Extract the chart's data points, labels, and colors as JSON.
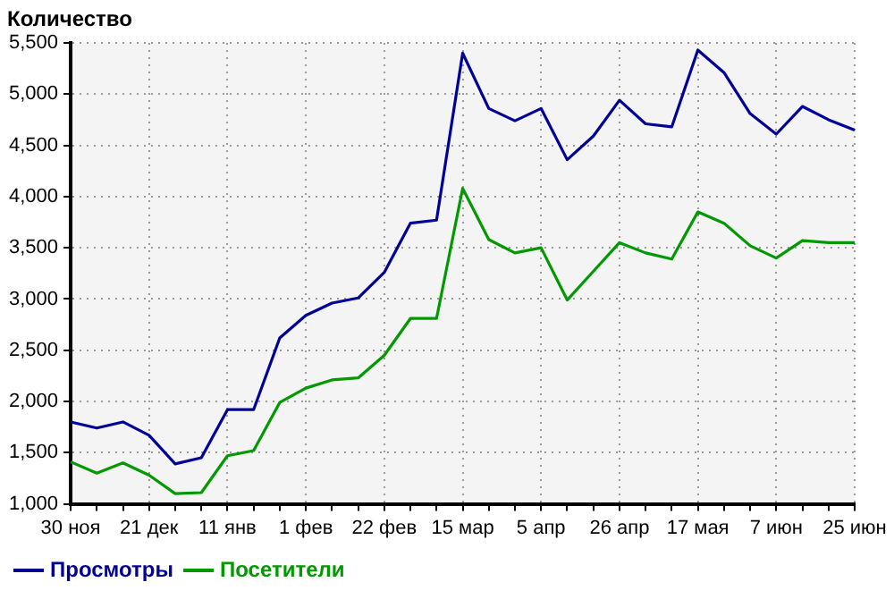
{
  "chart_data": {
    "type": "line",
    "ylabel": "Количество",
    "categories": [
      "30 ноя",
      null,
      null,
      "21 дек",
      null,
      null,
      "11 янв",
      null,
      null,
      "1 фев",
      null,
      null,
      "22 фев",
      null,
      null,
      "15 мар",
      null,
      null,
      "5 апр",
      null,
      null,
      "26 апр",
      null,
      null,
      "17 мая",
      null,
      null,
      "7 июн",
      null,
      null,
      "25 июн"
    ],
    "series": [
      {
        "name": "Просмотры",
        "color": "#000099",
        "values": [
          1800,
          1740,
          1800,
          1670,
          1390,
          1450,
          1920,
          1920,
          2620,
          2840,
          2960,
          3010,
          3260,
          3740,
          3770,
          5400,
          4860,
          4740,
          4860,
          4360,
          4590,
          4940,
          4710,
          4680,
          5430,
          5210,
          4810,
          4610,
          4880,
          4750,
          4650
        ]
      },
      {
        "name": "Посетители",
        "color": "#009900",
        "values": [
          1410,
          1300,
          1400,
          1280,
          1100,
          1110,
          1470,
          1520,
          1990,
          2130,
          2210,
          2230,
          2450,
          2810,
          2810,
          4080,
          3580,
          3450,
          3500,
          2990,
          3270,
          3550,
          3450,
          3390,
          3850,
          3740,
          3520,
          3400,
          3570,
          3550,
          3550
        ]
      }
    ],
    "ylim": [
      1000,
      5500
    ],
    "yticks": [
      {
        "value": 1000,
        "label": "1,000"
      },
      {
        "value": 1500,
        "label": "1,500"
      },
      {
        "value": 2000,
        "label": "2,000"
      },
      {
        "value": 2500,
        "label": "2,500"
      },
      {
        "value": 3000,
        "label": "3,000"
      },
      {
        "value": 3500,
        "label": "3,500"
      },
      {
        "value": 4000,
        "label": "4,000"
      },
      {
        "value": 4500,
        "label": "4,500"
      },
      {
        "value": 5000,
        "label": "5,000"
      },
      {
        "value": 5500,
        "label": "5,500"
      }
    ],
    "grid": true,
    "legend": "bottom left",
    "marker": "none",
    "line_style": "solid"
  }
}
